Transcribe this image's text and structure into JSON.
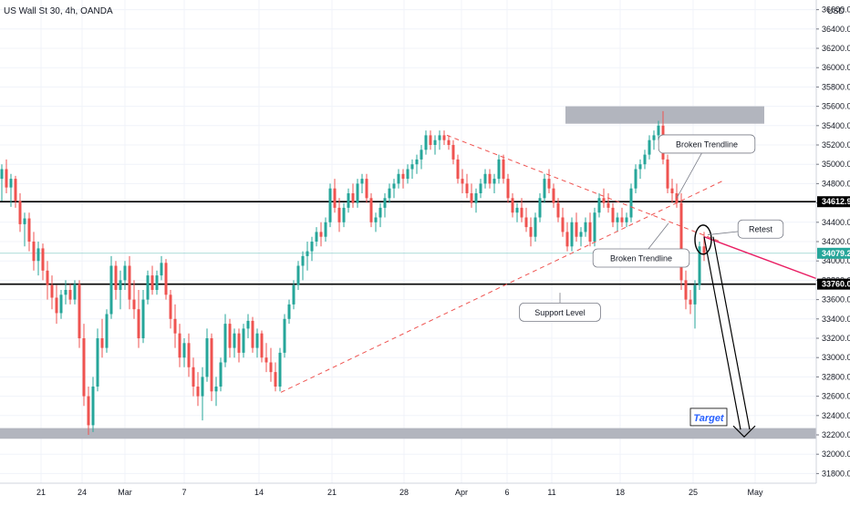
{
  "header": {
    "symbol_title": "US Wall St 30, 4h, OANDA",
    "currency": "USD"
  },
  "colors": {
    "up": "#26a69a",
    "down": "#ef5350",
    "zone": "#b2b5be",
    "level": "#000000",
    "trend_dashed": "#ef5350",
    "projection": "#e91e63",
    "price_tag": "#26a69a",
    "target_text": "#2962ff"
  },
  "chart_data": {
    "type": "candlestick",
    "title": "US Wall St 30, 4h, OANDA",
    "y_unit": "USD",
    "ylim": [
      31700,
      36700
    ],
    "y_ticks": [
      31800,
      32000,
      32200,
      32400,
      32600,
      32800,
      33000,
      33200,
      33400,
      33600,
      33800,
      34000,
      34200,
      34400,
      34600,
      34800,
      35000,
      35200,
      35400,
      35600,
      35800,
      36000,
      36200,
      36400,
      36600
    ],
    "y_tick_labels": [
      "31800.0",
      "32000.0",
      "32200.0",
      "32400.0",
      "32600.0",
      "32800.0",
      "33000.0",
      "33200.0",
      "33400.0",
      "33600.0",
      "33800.0",
      "34000.0",
      "34200.0",
      "34400.0",
      "34600.0",
      "34800.0",
      "35000.0",
      "35200.0",
      "35400.0",
      "35600.0",
      "35800.0",
      "36000.0",
      "36200.0",
      "36400.0",
      "36600.0"
    ],
    "x_labels": [
      {
        "label": "21",
        "t": 45
      },
      {
        "label": "24",
        "t": 90
      },
      {
        "label": "Mar",
        "t": 137
      },
      {
        "label": "7",
        "t": 202
      },
      {
        "label": "14",
        "t": 284
      },
      {
        "label": "21",
        "t": 364
      },
      {
        "label": "28",
        "t": 443
      },
      {
        "label": "Apr",
        "t": 506
      },
      {
        "label": "6",
        "t": 556
      },
      {
        "label": "11",
        "t": 605
      },
      {
        "label": "18",
        "t": 680
      },
      {
        "label": "25",
        "t": 760
      },
      {
        "label": "May",
        "t": 828
      }
    ],
    "price_tags": [
      {
        "value": 34612.9,
        "label": "34612.9",
        "style": "level"
      },
      {
        "value": 34079.2,
        "label": "34079.2",
        "style": "current"
      },
      {
        "value": 33760.0,
        "label": "33760.0",
        "style": "level"
      }
    ],
    "horizontal_levels": [
      34612.9,
      33760.0
    ],
    "current_price": 34079.2,
    "zones": [
      {
        "t1": 620,
        "t2": 838,
        "y1": 35420,
        "y2": 35600,
        "label": "resistance zone"
      },
      {
        "t1": 0,
        "t2": 895,
        "y1": 32160,
        "y2": 32270,
        "label": "target zone"
      }
    ],
    "trendlines": [
      {
        "t1": 308,
        "y1": 32640,
        "t2": 795,
        "y2": 34840,
        "style": "dashed",
        "desc": "rising trendline"
      },
      {
        "t1": 490,
        "y1": 35300,
        "t2": 790,
        "y2": 34200,
        "style": "dashed",
        "desc": "falling trendline"
      },
      {
        "t1": 772,
        "y1": 34250,
        "t2": 900,
        "y2": 33800,
        "style": "solid",
        "desc": "projection"
      }
    ],
    "annotations": [
      {
        "text": "Broken Trendline",
        "t": 775,
        "y": 35210,
        "pt": 742,
        "py": 34650
      },
      {
        "text": "Broken Trendline",
        "t": 703,
        "y": 34030,
        "pt": 733,
        "py": 34390
      },
      {
        "text": "Retest",
        "t": 834,
        "y": 34330,
        "pt": 776,
        "py": 34270
      },
      {
        "text": "Support Level",
        "t": 614,
        "y": 33470,
        "pt": 614,
        "py": 33670
      },
      {
        "text": "Target",
        "t": 777,
        "y": 32380,
        "pt": 777,
        "py": 32380
      }
    ],
    "arrow": {
      "from": [
        772,
        34250
      ],
      "to": [
        822,
        32180
      ],
      "desc": "hollow down arrow to target"
    },
    "circle": {
      "t": 771,
      "y": 34220
    },
    "candles": [
      [
        0,
        34850,
        35000,
        34620,
        34950
      ],
      [
        5,
        34950,
        35050,
        34700,
        34760
      ],
      [
        10,
        34760,
        34900,
        34560,
        34850
      ],
      [
        15,
        34850,
        34880,
        34550,
        34620
      ],
      [
        20,
        34620,
        34700,
        34300,
        34380
      ],
      [
        25,
        34380,
        34500,
        34150,
        34440
      ],
      [
        30,
        34440,
        34500,
        34100,
        34200
      ],
      [
        35,
        34200,
        34300,
        33900,
        34000
      ],
      [
        40,
        34000,
        34200,
        33850,
        34130
      ],
      [
        45,
        34130,
        34180,
        33800,
        33900
      ],
      [
        50,
        33900,
        34000,
        33600,
        33750
      ],
      [
        55,
        33750,
        33850,
        33500,
        33620
      ],
      [
        60,
        33620,
        33750,
        33350,
        33460
      ],
      [
        65,
        33460,
        33700,
        33400,
        33650
      ],
      [
        70,
        33650,
        33800,
        33550,
        33700
      ],
      [
        75,
        33700,
        33760,
        33550,
        33600
      ],
      [
        80,
        33600,
        33800,
        33550,
        33760
      ],
      [
        85,
        33760,
        33800,
        33100,
        33200
      ],
      [
        90,
        33200,
        33350,
        32500,
        32600
      ],
      [
        95,
        32600,
        32700,
        32200,
        32300
      ],
      [
        100,
        32300,
        32800,
        32230,
        32700
      ],
      [
        105,
        32700,
        33300,
        32650,
        33200
      ],
      [
        110,
        33200,
        33400,
        33000,
        33100
      ],
      [
        115,
        33100,
        33500,
        33050,
        33450
      ],
      [
        120,
        33450,
        34050,
        33400,
        33950
      ],
      [
        125,
        33950,
        34000,
        33600,
        33700
      ],
      [
        130,
        33700,
        33900,
        33500,
        33800
      ],
      [
        135,
        33800,
        34000,
        33700,
        33950
      ],
      [
        140,
        33950,
        34050,
        33500,
        33600
      ],
      [
        145,
        33600,
        33800,
        33400,
        33500
      ],
      [
        150,
        33500,
        33700,
        33100,
        33200
      ],
      [
        155,
        33200,
        33700,
        33150,
        33600
      ],
      [
        160,
        33600,
        33900,
        33550,
        33850
      ],
      [
        165,
        33850,
        33950,
        33650,
        33700
      ],
      [
        170,
        33700,
        33900,
        33650,
        33850
      ],
      [
        175,
        33850,
        34050,
        33800,
        33980
      ],
      [
        180,
        33980,
        34020,
        33600,
        33650
      ],
      [
        185,
        33650,
        33700,
        33300,
        33400
      ],
      [
        190,
        33400,
        33550,
        33100,
        33250
      ],
      [
        195,
        33250,
        33350,
        32900,
        33000
      ],
      [
        200,
        33000,
        33200,
        32900,
        33150
      ],
      [
        205,
        33150,
        33250,
        32800,
        32900
      ],
      [
        210,
        32900,
        33000,
        32600,
        32700
      ],
      [
        215,
        32700,
        32850,
        32500,
        32600
      ],
      [
        220,
        32600,
        32900,
        32350,
        32800
      ],
      [
        225,
        32800,
        33300,
        32750,
        33200
      ],
      [
        230,
        33200,
        33250,
        32550,
        32650
      ],
      [
        235,
        32650,
        32800,
        32500,
        32700
      ],
      [
        240,
        32700,
        33000,
        32650,
        32950
      ],
      [
        245,
        32950,
        33450,
        32900,
        33350
      ],
      [
        250,
        33350,
        33400,
        33000,
        33100
      ],
      [
        255,
        33100,
        33300,
        33000,
        33250
      ],
      [
        260,
        33250,
        33300,
        32950,
        33050
      ],
      [
        265,
        33050,
        33350,
        33000,
        33300
      ],
      [
        270,
        33300,
        33450,
        33200,
        33380
      ],
      [
        275,
        33380,
        33420,
        33050,
        33100
      ],
      [
        280,
        33100,
        33300,
        33000,
        33250
      ],
      [
        285,
        33250,
        33280,
        32950,
        33000
      ],
      [
        290,
        33000,
        33150,
        32850,
        32950
      ],
      [
        295,
        32950,
        33100,
        32750,
        32850
      ],
      [
        300,
        32850,
        32950,
        32650,
        32700
      ],
      [
        305,
        32700,
        33100,
        32650,
        33050
      ],
      [
        310,
        33050,
        33450,
        33000,
        33400
      ],
      [
        315,
        33400,
        33600,
        33350,
        33550
      ],
      [
        320,
        33550,
        33800,
        33500,
        33750
      ],
      [
        325,
        33750,
        34000,
        33700,
        33950
      ],
      [
        330,
        33950,
        34100,
        33800,
        34050
      ],
      [
        335,
        34050,
        34200,
        33900,
        34100
      ],
      [
        340,
        34100,
        34250,
        34000,
        34200
      ],
      [
        345,
        34200,
        34350,
        34150,
        34300
      ],
      [
        350,
        34300,
        34400,
        34150,
        34250
      ],
      [
        355,
        34250,
        34450,
        34200,
        34400
      ],
      [
        360,
        34400,
        34800,
        34350,
        34750
      ],
      [
        365,
        34750,
        34850,
        34500,
        34550
      ],
      [
        370,
        34550,
        34650,
        34300,
        34400
      ],
      [
        375,
        34400,
        34600,
        34350,
        34550
      ],
      [
        380,
        34550,
        34750,
        34500,
        34700
      ],
      [
        385,
        34700,
        34800,
        34550,
        34600
      ],
      [
        390,
        34600,
        34850,
        34550,
        34800
      ],
      [
        395,
        34800,
        34900,
        34700,
        34850
      ],
      [
        400,
        34850,
        34900,
        34600,
        34650
      ],
      [
        405,
        34650,
        34700,
        34350,
        34400
      ],
      [
        410,
        34400,
        34500,
        34300,
        34450
      ],
      [
        415,
        34450,
        34600,
        34350,
        34550
      ],
      [
        420,
        34550,
        34700,
        34450,
        34650
      ],
      [
        425,
        34650,
        34800,
        34600,
        34750
      ],
      [
        430,
        34750,
        34850,
        34650,
        34800
      ],
      [
        435,
        34800,
        34950,
        34750,
        34900
      ],
      [
        440,
        34900,
        34950,
        34750,
        34850
      ],
      [
        445,
        34850,
        35000,
        34800,
        34950
      ],
      [
        450,
        34950,
        35050,
        34850,
        35000
      ],
      [
        455,
        35000,
        35100,
        34900,
        35050
      ],
      [
        460,
        35050,
        35200,
        34950,
        35150
      ],
      [
        465,
        35150,
        35350,
        35100,
        35300
      ],
      [
        470,
        35300,
        35350,
        35150,
        35200
      ],
      [
        475,
        35200,
        35300,
        35100,
        35250
      ],
      [
        480,
        35250,
        35350,
        35150,
        35300
      ],
      [
        485,
        35300,
        35350,
        35200,
        35250
      ],
      [
        490,
        35250,
        35300,
        35150,
        35200
      ],
      [
        495,
        35200,
        35250,
        35000,
        35050
      ],
      [
        500,
        35050,
        35100,
        34800,
        34850
      ],
      [
        505,
        34850,
        34950,
        34700,
        34800
      ],
      [
        510,
        34800,
        34900,
        34650,
        34700
      ],
      [
        515,
        34700,
        34800,
        34550,
        34600
      ],
      [
        520,
        34600,
        34750,
        34500,
        34700
      ],
      [
        525,
        34700,
        34850,
        34650,
        34800
      ],
      [
        530,
        34800,
        34950,
        34750,
        34900
      ],
      [
        535,
        34900,
        34950,
        34750,
        34800
      ],
      [
        540,
        34800,
        34900,
        34700,
        34850
      ],
      [
        545,
        34850,
        35100,
        34800,
        35050
      ],
      [
        550,
        35050,
        35100,
        34800,
        34850
      ],
      [
        555,
        34850,
        34900,
        34600,
        34650
      ],
      [
        560,
        34650,
        34700,
        34450,
        34500
      ],
      [
        565,
        34500,
        34600,
        34400,
        34550
      ],
      [
        570,
        34550,
        34650,
        34400,
        34450
      ],
      [
        575,
        34450,
        34550,
        34300,
        34350
      ],
      [
        580,
        34350,
        34450,
        34150,
        34250
      ],
      [
        585,
        34250,
        34500,
        34200,
        34450
      ],
      [
        590,
        34450,
        34700,
        34400,
        34650
      ],
      [
        595,
        34650,
        34900,
        34600,
        34850
      ],
      [
        600,
        34850,
        34950,
        34700,
        34750
      ],
      [
        605,
        34750,
        34800,
        34550,
        34600
      ],
      [
        610,
        34600,
        34650,
        34400,
        34450
      ],
      [
        615,
        34450,
        34550,
        34250,
        34300
      ],
      [
        620,
        34300,
        34400,
        34100,
        34150
      ],
      [
        625,
        34150,
        34450,
        34100,
        34400
      ],
      [
        630,
        34400,
        34500,
        34200,
        34250
      ],
      [
        635,
        34250,
        34350,
        34150,
        34300
      ],
      [
        640,
        34300,
        34450,
        34250,
        34400
      ],
      [
        645,
        34400,
        34500,
        34150,
        34200
      ],
      [
        650,
        34200,
        34550,
        34150,
        34500
      ],
      [
        655,
        34500,
        34700,
        34450,
        34650
      ],
      [
        660,
        34650,
        34750,
        34550,
        34600
      ],
      [
        665,
        34600,
        34700,
        34500,
        34550
      ],
      [
        670,
        34550,
        34600,
        34350,
        34400
      ],
      [
        675,
        34400,
        34500,
        34300,
        34450
      ],
      [
        680,
        34450,
        34550,
        34350,
        34400
      ],
      [
        685,
        34400,
        34500,
        34350,
        34450
      ],
      [
        690,
        34450,
        34800,
        34400,
        34750
      ],
      [
        695,
        34750,
        35000,
        34700,
        34950
      ],
      [
        700,
        34950,
        35050,
        34850,
        35000
      ],
      [
        705,
        35000,
        35150,
        34950,
        35100
      ],
      [
        710,
        35100,
        35300,
        35050,
        35250
      ],
      [
        715,
        35250,
        35350,
        35150,
        35300
      ],
      [
        720,
        35300,
        35450,
        35250,
        35400
      ],
      [
        725,
        35400,
        35550,
        35000,
        35050
      ],
      [
        730,
        35050,
        35100,
        34700,
        34750
      ],
      [
        735,
        34750,
        34850,
        34600,
        34700
      ],
      [
        740,
        34700,
        34800,
        34550,
        34600
      ],
      [
        745,
        34600,
        34700,
        33700,
        33800
      ],
      [
        750,
        33800,
        33900,
        33500,
        33600
      ],
      [
        755,
        33600,
        33700,
        33450,
        33550
      ],
      [
        760,
        33550,
        33800,
        33300,
        33750
      ],
      [
        765,
        33750,
        34200,
        33700,
        34150
      ],
      [
        770,
        34150,
        34300,
        34000,
        34079.2
      ]
    ]
  }
}
